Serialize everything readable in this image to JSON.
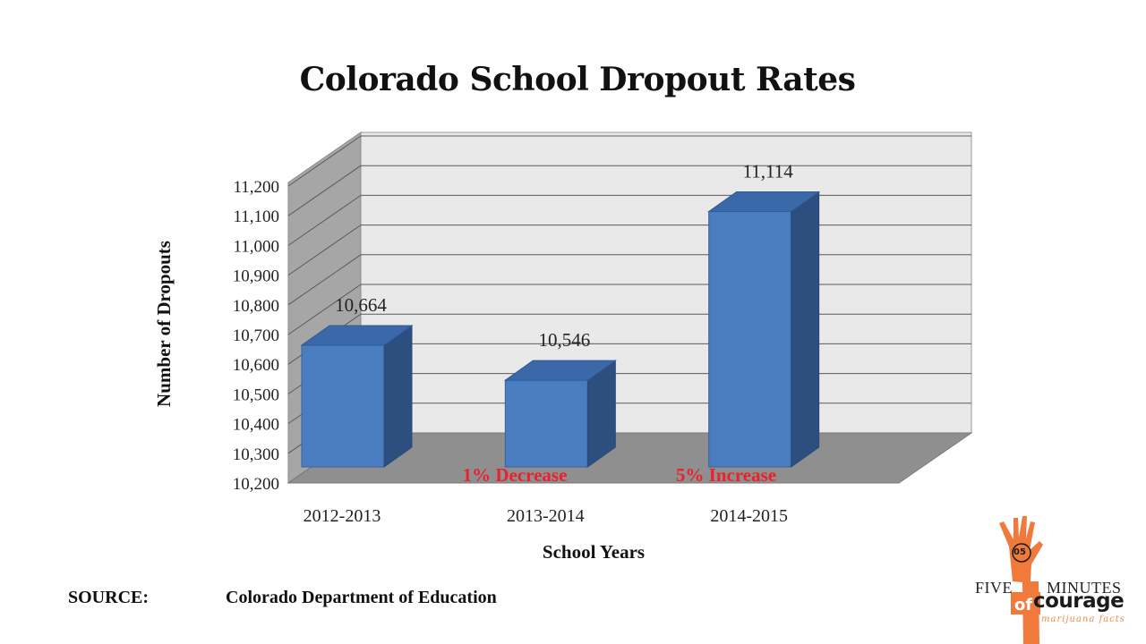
{
  "chart_data": {
    "type": "bar",
    "title": "Colorado School Dropout Rates",
    "xlabel": "School Years",
    "ylabel": "Number of Dropouts",
    "categories": [
      "2012-2013",
      "2013-2014",
      "2014-2015"
    ],
    "values": [
      10664,
      10546,
      11114
    ],
    "value_labels": [
      "10,664",
      "10,546",
      "11,114"
    ],
    "ylim": [
      10200,
      11200
    ],
    "y_ticks": [
      10200,
      10300,
      10400,
      10500,
      10600,
      10700,
      10800,
      10900,
      11000,
      11100,
      11200
    ],
    "y_tick_labels": [
      "10,200",
      "10,300",
      "10,400",
      "10,500",
      "10,600",
      "10,700",
      "10,800",
      "10,900",
      "11,000",
      "11,100",
      "11,200"
    ],
    "annotations": [
      "1% Decrease",
      "5% Increase"
    ],
    "grid": true,
    "style": "3d",
    "colors": {
      "bar_front": "#4a7dc0",
      "bar_top": "#3a68a8",
      "bar_side": "#2d4f80",
      "annotation": "#e8222e",
      "back_wall": "#e9e9e9",
      "left_wall": "#a6a6a6",
      "floor": "#8f8f8f"
    }
  },
  "source": {
    "label": "SOURCE:",
    "value": "Colorado Department of Education"
  },
  "logo": {
    "badge": "05",
    "five": "FIVE",
    "minutes": "MINUTES",
    "of": "of",
    "courage": "courage",
    "tagline": "marijuana facts",
    "colors": {
      "accent": "#f07a3c",
      "text": "#1b1b1b"
    }
  }
}
